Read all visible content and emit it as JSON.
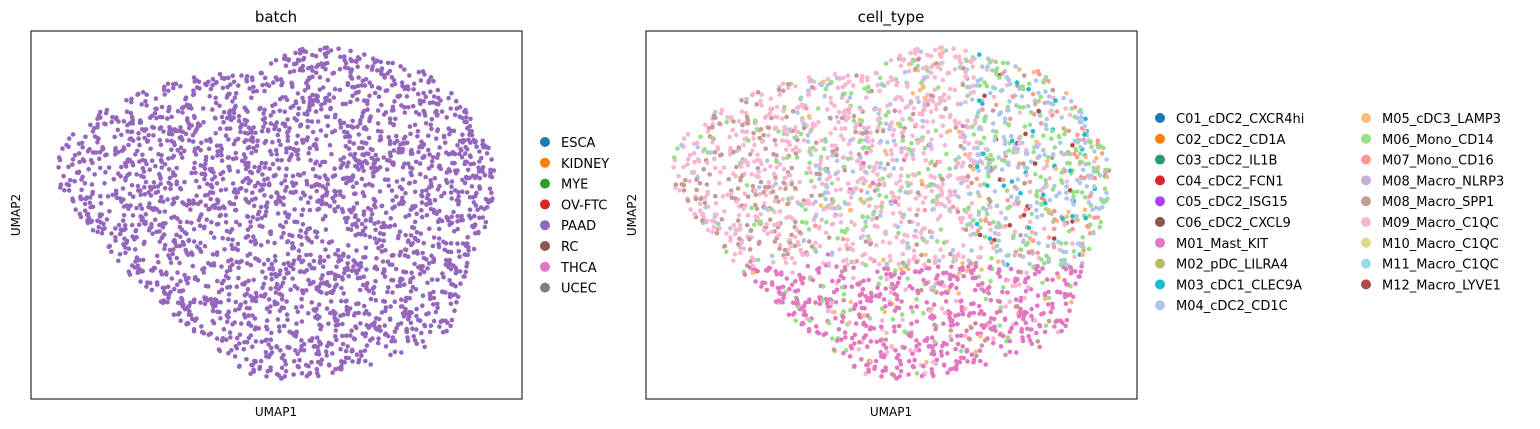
{
  "colors": {
    "ESCA": "#1f77b4",
    "KIDNEY": "#ff7f0e",
    "MYE": "#2ca02c",
    "OV-FTC": "#d62728",
    "PAAD": "#9467bd",
    "RC": "#8c564b",
    "THCA": "#e377c2",
    "UCEC": "#7f7f7f",
    "C01_cDC2_CXCR4hi": "#1f77b4",
    "C02_cDC2_CD1A": "#ff7f0e",
    "C03_cDC2_IL1B": "#279e68",
    "C04_cDC2_FCN1": "#d62728",
    "C05_cDC2_ISG15": "#aa40fc",
    "C06_cDC2_CXCL9": "#8c564b",
    "M01_Mast_KIT": "#e377c2",
    "M02_pDC_LILRA4": "#b5bd61",
    "M03_cDC1_CLEC9A": "#17becf",
    "M04_cDC2_CD1C": "#aec7e8",
    "M05_cDC3_LAMP3": "#ffbb78",
    "M06_Mono_CD14": "#98df8a",
    "M07_Mono_CD16": "#ff9896",
    "M08_Macro_NLRP3": "#c5b0d5",
    "M08_Macro_SPP1": "#c49c94",
    "M09_Macro_C1QC": "#f7b6d2",
    "M10_Macro_C1QC": "#dbdb8d",
    "M11_Macro_C1QC": "#9edae5",
    "M12_Macro_LYVE1": "#ad494a"
  },
  "chart_data": [
    {
      "type": "scatter",
      "title": "batch",
      "xlabel": "UMAP1",
      "ylabel": "UMAP2",
      "legend_placement": "right",
      "grid": false,
      "ticks": false,
      "legend": [
        "ESCA",
        "KIDNEY",
        "MYE",
        "OV-FTC",
        "PAAD",
        "RC",
        "THCA",
        "UCEC"
      ],
      "series": [
        {
          "name": "PAAD",
          "point_count_approx": 2600
        }
      ]
    },
    {
      "type": "scatter",
      "title": "cell_type",
      "xlabel": "UMAP1",
      "ylabel": "UMAP2",
      "legend_placement": "right",
      "grid": false,
      "ticks": false,
      "legend": [
        "C01_cDC2_CXCR4hi",
        "C02_cDC2_CD1A",
        "C03_cDC2_IL1B",
        "C04_cDC2_FCN1",
        "C05_cDC2_ISG15",
        "C06_cDC2_CXCL9",
        "M01_Mast_KIT",
        "M02_pDC_LILRA4",
        "M03_cDC1_CLEC9A",
        "M04_cDC2_CD1C",
        "M05_cDC3_LAMP3",
        "M06_Mono_CD14",
        "M07_Mono_CD16",
        "M08_Macro_NLRP3",
        "M08_Macro_SPP1",
        "M09_Macro_C1QC",
        "M10_Macro_C1QC",
        "M11_Macro_C1QC",
        "M12_Macro_LYVE1"
      ],
      "series": [
        {
          "name": "M09_Macro_C1QC",
          "region": "top-left and top-center"
        },
        {
          "name": "M01_Mast_KIT",
          "region": "bottom"
        },
        {
          "name": "M08_Macro_SPP1",
          "region": "left"
        },
        {
          "name": "M04_cDC2_CD1C",
          "region": "upper-right"
        },
        {
          "name": "M06_Mono_CD14",
          "region": "center and right"
        },
        {
          "name": "M07_Mono_CD16",
          "region": "far right"
        },
        {
          "name": "M05_cDC3_LAMP3",
          "region": "scattered"
        },
        {
          "name": "M03_cDC1_CLEC9A",
          "region": "right"
        }
      ]
    }
  ]
}
